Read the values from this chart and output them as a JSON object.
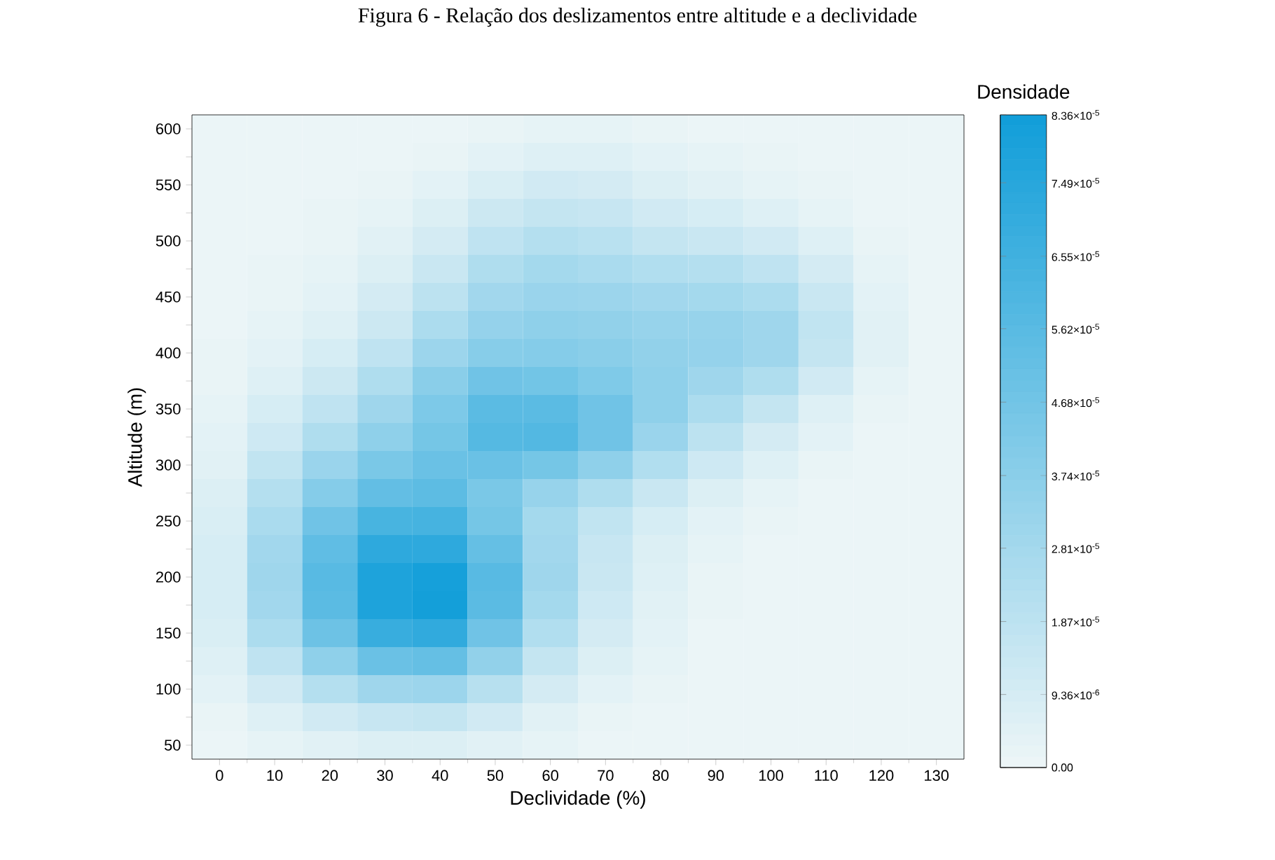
{
  "chart_data": {
    "type": "heatmap",
    "title": "Figura 6 - Relação dos deslizamentos entre altitude e a declividade",
    "xlabel": "Declividade (%)",
    "ylabel": "Altitude (m)",
    "clabel": "Densidade",
    "categories": [
      "0",
      "10",
      "20",
      "30",
      "40",
      "50",
      "60",
      "70",
      "80",
      "90",
      "100",
      "110",
      "120",
      "130"
    ],
    "y_categories": [
      "600",
      null,
      "550",
      null,
      "500",
      null,
      "450",
      null,
      "400",
      null,
      "350",
      null,
      "300",
      null,
      "250",
      null,
      "200",
      null,
      "150",
      null,
      "100",
      null,
      "50"
    ],
    "clim": [
      0,
      8.36e-05
    ],
    "cticks": [
      {
        "value": 0,
        "label": "0.00"
      },
      {
        "value": 9.36e-06,
        "label": "9.36×10$^{-6}$"
      },
      {
        "value": 1.87e-05,
        "label": "1.87×10$^{-5}$"
      },
      {
        "value": 2.81e-05,
        "label": "2.81×10$^{-5}$"
      },
      {
        "value": 3.74e-05,
        "label": "3.74×10$^{-5}$"
      },
      {
        "value": 4.68e-05,
        "label": "4.68×10$^{-5}$"
      },
      {
        "value": 5.62e-05,
        "label": "5.62×10$^{-5}$"
      },
      {
        "value": 6.55e-05,
        "label": "6.55×10$^{-5}$"
      },
      {
        "value": 7.49e-05,
        "label": "7.49×10$^{-5}$"
      },
      {
        "value": 8.36e-05,
        "label": "8.36×10$^{-5}$"
      }
    ],
    "cells": [
      [
        1e-06,
        1e-06,
        1e-06,
        1e-06,
        1e-06,
        2e-06,
        3e-06,
        3e-06,
        2e-06,
        1e-06,
        1e-06,
        1e-06,
        1e-06,
        1e-06
      ],
      [
        1e-06,
        1e-06,
        1e-06,
        1e-06,
        2e-06,
        4e-06,
        6e-06,
        6e-06,
        4e-06,
        3e-06,
        2e-06,
        1e-06,
        1e-06,
        1e-06
      ],
      [
        1e-06,
        1e-06,
        1e-06,
        2e-06,
        4e-06,
        8e-06,
        1.1e-05,
        1e-05,
        7e-06,
        5e-06,
        3e-06,
        2e-06,
        1e-06,
        1e-06
      ],
      [
        1e-06,
        1e-06,
        2e-06,
        3e-06,
        7e-06,
        1.3e-05,
        1.6e-05,
        1.5e-05,
        1.1e-05,
        9e-06,
        6e-06,
        3e-06,
        1e-06,
        1e-06
      ],
      [
        1e-06,
        1e-06,
        2e-06,
        5e-06,
        1e-05,
        1.8e-05,
        2.2e-05,
        2e-05,
        1.6e-05,
        1.4e-05,
        1.1e-05,
        6e-06,
        2e-06,
        1e-06
      ],
      [
        1e-06,
        2e-06,
        3e-06,
        7e-06,
        1.4e-05,
        2.4e-05,
        2.8e-05,
        2.6e-05,
        2.3e-05,
        2.2e-05,
        1.8e-05,
        1e-05,
        3e-06,
        1e-06
      ],
      [
        1e-06,
        2e-06,
        4e-06,
        1e-05,
        1.9e-05,
        2.9e-05,
        3.2e-05,
        3.1e-05,
        2.9e-05,
        2.8e-05,
        2.5e-05,
        1.4e-05,
        4e-06,
        1e-06
      ],
      [
        1e-06,
        3e-06,
        6e-06,
        1.3e-05,
        2.5e-05,
        3.4e-05,
        3.6e-05,
        3.5e-05,
        3.3e-05,
        3.3e-05,
        3e-05,
        1.7e-05,
        5e-06,
        1e-06
      ],
      [
        2e-06,
        4e-06,
        9e-06,
        1.8e-05,
        3.1e-05,
        3.9e-05,
        4e-05,
        3.8e-05,
        3.5e-05,
        3.4e-05,
        3e-05,
        1.6e-05,
        5e-06,
        1e-06
      ],
      [
        2e-06,
        6e-06,
        1.3e-05,
        2.4e-05,
        3.8e-05,
        4.8e-05,
        4.7e-05,
        4.2e-05,
        3.6e-05,
        3e-05,
        2.4e-05,
        1.1e-05,
        3e-06,
        1e-06
      ],
      [
        3e-06,
        9e-06,
        1.8e-05,
        3e-05,
        4.3e-05,
        5.6e-05,
        5.6e-05,
        4.8e-05,
        3.6e-05,
        2.5e-05,
        1.6e-05,
        6e-06,
        2e-06,
        1e-06
      ],
      [
        4e-06,
        1.2e-05,
        2.4e-05,
        3.6e-05,
        4.6e-05,
        5.8e-05,
        5.9e-05,
        4.8e-05,
        3.2e-05,
        1.9e-05,
        1e-05,
        4e-06,
        1e-06,
        1e-06
      ],
      [
        5e-06,
        1.7e-05,
        3.2e-05,
        4.4e-05,
        5e-05,
        5e-05,
        4.6e-05,
        3.6e-05,
        2.3e-05,
        1.2e-05,
        6e-06,
        2e-06,
        1e-06,
        1e-06
      ],
      [
        7e-06,
        2.2e-05,
        4e-05,
        5.3e-05,
        5.5e-05,
        4.4e-05,
        3.3e-05,
        2.4e-05,
        1.4e-05,
        7e-06,
        3e-06,
        1e-06,
        1e-06,
        1e-06
      ],
      [
        8e-06,
        2.6e-05,
        4.8e-05,
        6.3e-05,
        6.4e-05,
        4.6e-05,
        2.8e-05,
        1.7e-05,
        9e-06,
        4e-06,
        2e-06,
        1e-06,
        1e-06,
        1e-06
      ],
      [
        9e-06,
        2.9e-05,
        5.4e-05,
        7.3e-05,
        7.3e-05,
        5.2e-05,
        2.9e-05,
        1.5e-05,
        7e-06,
        3e-06,
        1e-06,
        1e-06,
        1e-06,
        1e-06
      ],
      [
        9e-06,
        3e-05,
        5.7e-05,
        7.9e-05,
        8.2e-05,
        5.7e-05,
        3e-05,
        1.4e-05,
        6e-06,
        2e-06,
        1e-06,
        1e-06,
        1e-06,
        1e-06
      ],
      [
        9e-06,
        2.9e-05,
        5.6e-05,
        7.9e-05,
        8.3e-05,
        5.6e-05,
        2.8e-05,
        1.2e-05,
        5e-06,
        2e-06,
        1e-06,
        1e-06,
        1e-06,
        1e-06
      ],
      [
        8e-06,
        2.5e-05,
        4.9e-05,
        6.9e-05,
        7.2e-05,
        4.8e-05,
        2.3e-05,
        1e-05,
        4e-06,
        1e-06,
        1e-06,
        1e-06,
        1e-06,
        1e-06
      ],
      [
        6e-06,
        1.8e-05,
        3.6e-05,
        5e-05,
        5.2e-05,
        3.5e-05,
        1.6e-05,
        7e-06,
        3e-06,
        1e-06,
        1e-06,
        1e-06,
        1e-06,
        1e-06
      ],
      [
        4e-06,
        1.1e-05,
        2.2e-05,
        3e-05,
        3.1e-05,
        2.1e-05,
        1e-05,
        4e-06,
        2e-06,
        1e-06,
        1e-06,
        1e-06,
        1e-06,
        1e-06
      ],
      [
        2e-06,
        6e-06,
        1.1e-05,
        1.5e-05,
        1.6e-05,
        1.1e-05,
        5e-06,
        2e-06,
        1e-06,
        1e-06,
        1e-06,
        1e-06,
        1e-06,
        1e-06
      ],
      [
        1e-06,
        3e-06,
        5e-06,
        7e-06,
        7e-06,
        5e-06,
        3e-06,
        1e-06,
        1e-06,
        1e-06,
        1e-06,
        1e-06,
        1e-06,
        1e-06
      ]
    ]
  }
}
